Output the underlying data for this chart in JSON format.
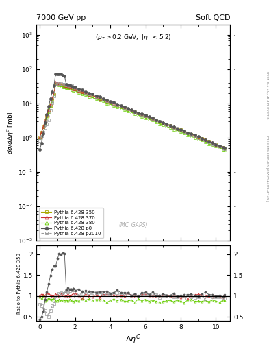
{
  "title_left": "7000 GeV pp",
  "title_right": "Soft QCD",
  "annotation": "(p_{T} > 0.2 GeV, |\\eta| < 5.2)",
  "mc_label": "(MC_GAPS)",
  "ylabel_main": "d\\sigma/d\\Delta\\eta^{C} [mb]",
  "ylabel_ratio": "Ratio to Pythia 6.428 350",
  "xlabel": "\\Delta\\eta^{C}",
  "right_label_top": "Rivet 3.1.10, \\geq 3M events",
  "right_label_bottom": "mcplots.cern.ch [arXiv:1306.3436]",
  "ylim_main": [
    0.001,
    2000.0
  ],
  "ylim_ratio": [
    0.4,
    2.2
  ],
  "yticks_ratio": [
    0.5,
    1.0,
    1.5,
    2.0
  ],
  "xticks": [
    0,
    2,
    4,
    6,
    8,
    10
  ],
  "series": [
    {
      "label": "Pythia 6.428 350",
      "color": "#aaaa00",
      "marker": "s",
      "linestyle": "-",
      "filled": false,
      "zorder": 2
    },
    {
      "label": "Pythia 6.428 370",
      "color": "#cc3333",
      "marker": "^",
      "linestyle": "-",
      "filled": false,
      "zorder": 3
    },
    {
      "label": "Pythia 6.428 380",
      "color": "#66cc00",
      "marker": "^",
      "linestyle": "-",
      "filled": false,
      "zorder": 2
    },
    {
      "label": "Pythia 6.428 p0",
      "color": "#555555",
      "marker": "o",
      "linestyle": "-",
      "filled": true,
      "zorder": 4
    },
    {
      "label": "Pythia 6.428 p2010",
      "color": "#999999",
      "marker": "s",
      "linestyle": "--",
      "filled": false,
      "zorder": 3
    }
  ],
  "background_color": "#ffffff"
}
